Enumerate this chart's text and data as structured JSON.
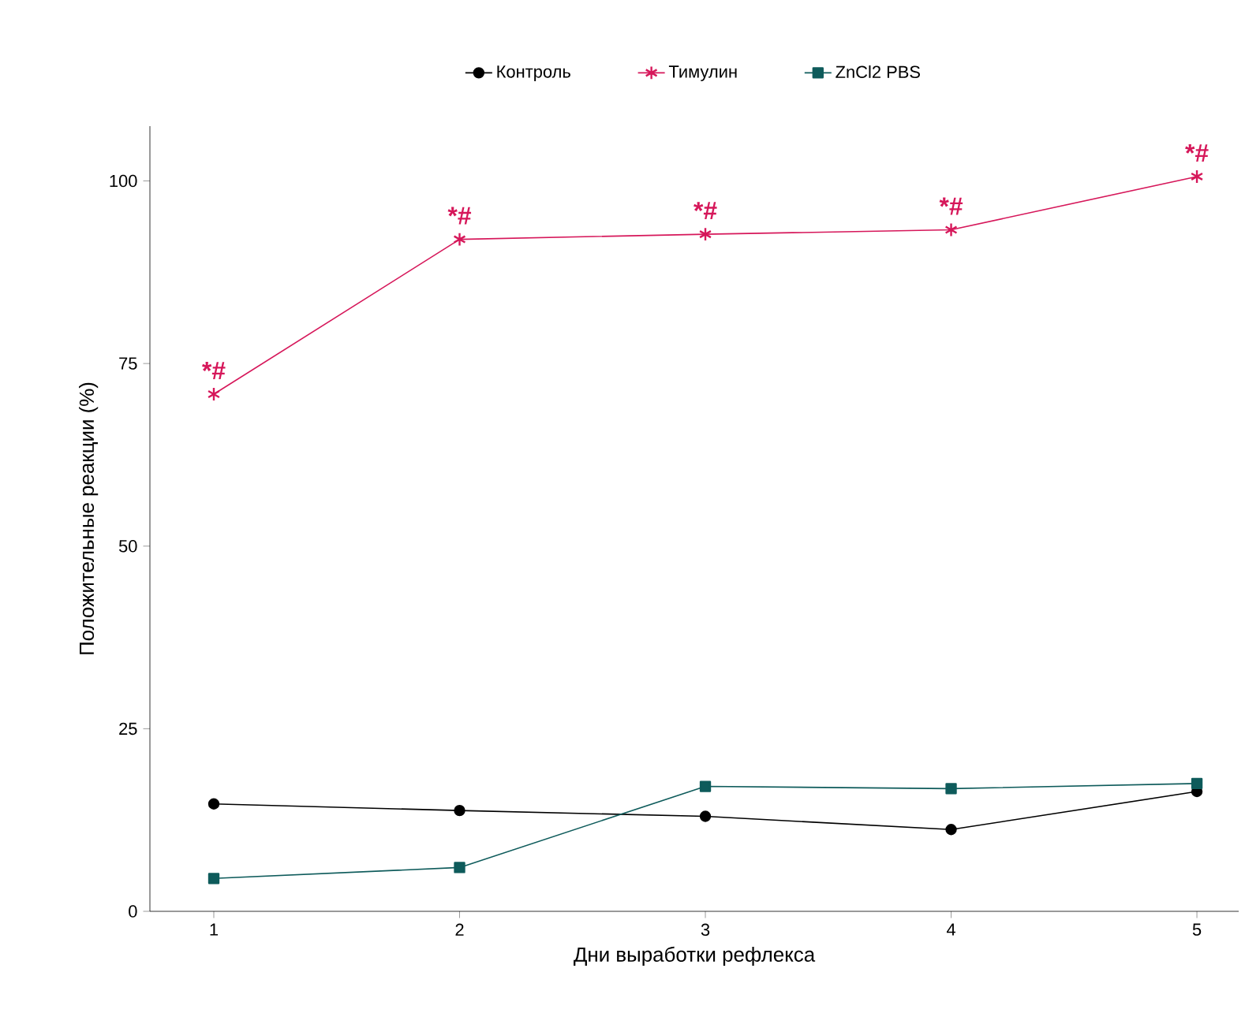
{
  "chart_data": {
    "type": "line",
    "xlabel": "Дни выработки рефлекса",
    "ylabel": "Положительные реакции (%)",
    "x": [
      1,
      2,
      3,
      4,
      5
    ],
    "series": [
      {
        "name": "Контроль",
        "color": "#000000",
        "marker": "circle",
        "values": [
          14.7,
          13.8,
          13.0,
          11.2,
          16.4
        ]
      },
      {
        "name": "Тимулин",
        "color": "#d6175a",
        "marker": "cross",
        "line_style": "solid",
        "values": [
          70.8,
          92.0,
          92.7,
          93.3,
          100.6
        ]
      },
      {
        "name": "ZnCl2 PBS",
        "color": "#0e5b5b",
        "marker": "square",
        "values": [
          4.5,
          6.0,
          17.1,
          16.8,
          17.5
        ]
      }
    ],
    "annotations": [
      {
        "text": "*#",
        "x": 1,
        "y": 70.8
      },
      {
        "text": "*#",
        "x": 2,
        "y": 92.0
      },
      {
        "text": "*#",
        "x": 3,
        "y": 92.7
      },
      {
        "text": "*#",
        "x": 4,
        "y": 93.3
      },
      {
        "text": "*#",
        "x": 5,
        "y": 100.6
      }
    ],
    "xlim": [
      0.74,
      5.17
    ],
    "ylim": [
      0,
      107.5
    ],
    "xticks": [
      1,
      2,
      3,
      4,
      5
    ],
    "yticks": [
      0,
      25,
      50,
      75,
      100
    ],
    "grid": false,
    "legend": "top"
  }
}
